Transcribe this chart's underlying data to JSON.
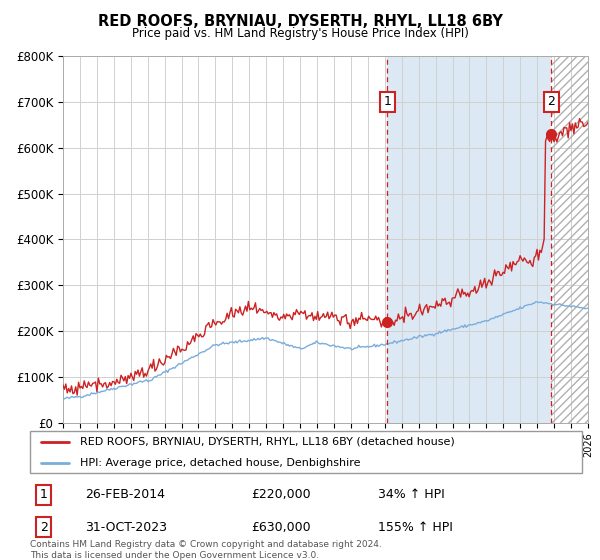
{
  "title": "RED ROOFS, BRYNIAU, DYSERTH, RHYL, LL18 6BY",
  "subtitle": "Price paid vs. HM Land Registry's House Price Index (HPI)",
  "legend_line1": "RED ROOFS, BRYNIAU, DYSERTH, RHYL, LL18 6BY (detached house)",
  "legend_line2": "HPI: Average price, detached house, Denbighshire",
  "annotation1_label": "1",
  "annotation1_date": "26-FEB-2014",
  "annotation1_price": "£220,000",
  "annotation1_hpi": "34% ↑ HPI",
  "annotation2_label": "2",
  "annotation2_date": "31-OCT-2023",
  "annotation2_price": "£630,000",
  "annotation2_hpi": "155% ↑ HPI",
  "footer": "Contains HM Land Registry data © Crown copyright and database right 2024.\nThis data is licensed under the Open Government Licence v3.0.",
  "red_color": "#cc2222",
  "blue_color": "#7aaddc",
  "shaded_color": "#dce9f5",
  "ylim": [
    0,
    800000
  ],
  "yticks": [
    0,
    100000,
    200000,
    300000,
    400000,
    500000,
    600000,
    700000,
    800000
  ],
  "year_start": 1995,
  "year_end": 2026,
  "sale1_year": 2014.15,
  "sale1_value": 220000,
  "sale2_year": 2023.83,
  "sale2_value": 630000
}
